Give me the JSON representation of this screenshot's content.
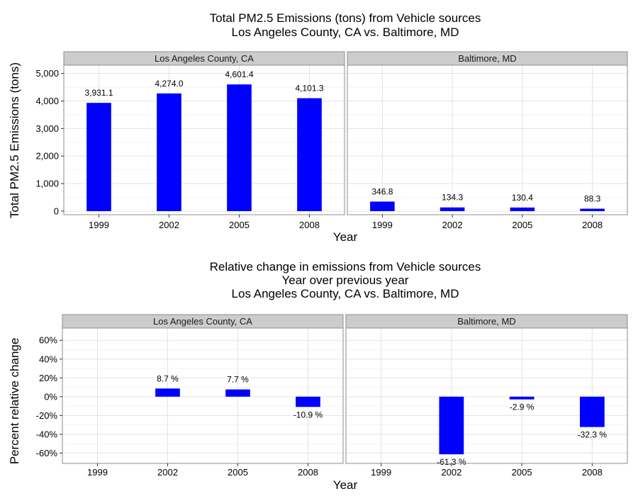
{
  "chart_data": [
    {
      "type": "bar",
      "title_lines": [
        "Total PM2.5 Emissions (tons) from Vehicle sources",
        "Los Angeles County, CA vs. Baltimore, MD"
      ],
      "xlabel": "Year",
      "ylabel": "Total PM2.5 Emissions (tons)",
      "ylim": [
        -130,
        5300
      ],
      "yticks": [
        0,
        1000,
        2000,
        3000,
        4000,
        5000
      ],
      "ytick_labels": [
        "0",
        "1,000",
        "2,000",
        "3,000",
        "4,000",
        "5,000"
      ],
      "categories": [
        "1999",
        "2002",
        "2005",
        "2008"
      ],
      "panels": [
        {
          "name": "Los Angeles County, CA",
          "values": [
            3931.1,
            4274.0,
            4601.4,
            4101.3
          ],
          "labels": [
            "3,931.1",
            "4,274.0",
            "4,601.4",
            "4,101.3"
          ]
        },
        {
          "name": "Baltimore, MD",
          "values": [
            346.8,
            134.3,
            130.4,
            88.3
          ],
          "labels": [
            "346.8",
            "134.3",
            "130.4",
            "88.3"
          ]
        }
      ],
      "bar_color": "#0000ff",
      "grid": true
    },
    {
      "type": "bar",
      "title_lines": [
        "Relative change in emissions from Vehicle sources",
        "Year over previous year",
        "Los Angeles County, CA vs. Baltimore, MD"
      ],
      "xlabel": "Year",
      "ylabel": "Percent relative change",
      "ylim": [
        -71,
        73
      ],
      "yticks": [
        -60,
        -40,
        -20,
        0,
        20,
        40,
        60
      ],
      "ytick_labels": [
        "-60%",
        "-40%",
        "-20%",
        "0%",
        "20%",
        "40%",
        "60%"
      ],
      "categories": [
        "1999",
        "2002",
        "2005",
        "2008"
      ],
      "panels": [
        {
          "name": "Los Angeles County, CA",
          "values": [
            null,
            8.7,
            7.7,
            -10.9
          ],
          "labels": [
            "",
            "8.7 %",
            "7.7 %",
            "-10.9 %"
          ]
        },
        {
          "name": "Baltimore, MD",
          "values": [
            null,
            -61.3,
            -2.9,
            -32.3
          ],
          "labels": [
            "",
            "-61.3 %",
            "-2.9 %",
            "-32.3 %"
          ]
        }
      ],
      "bar_color": "#0000ff",
      "grid": true
    }
  ]
}
